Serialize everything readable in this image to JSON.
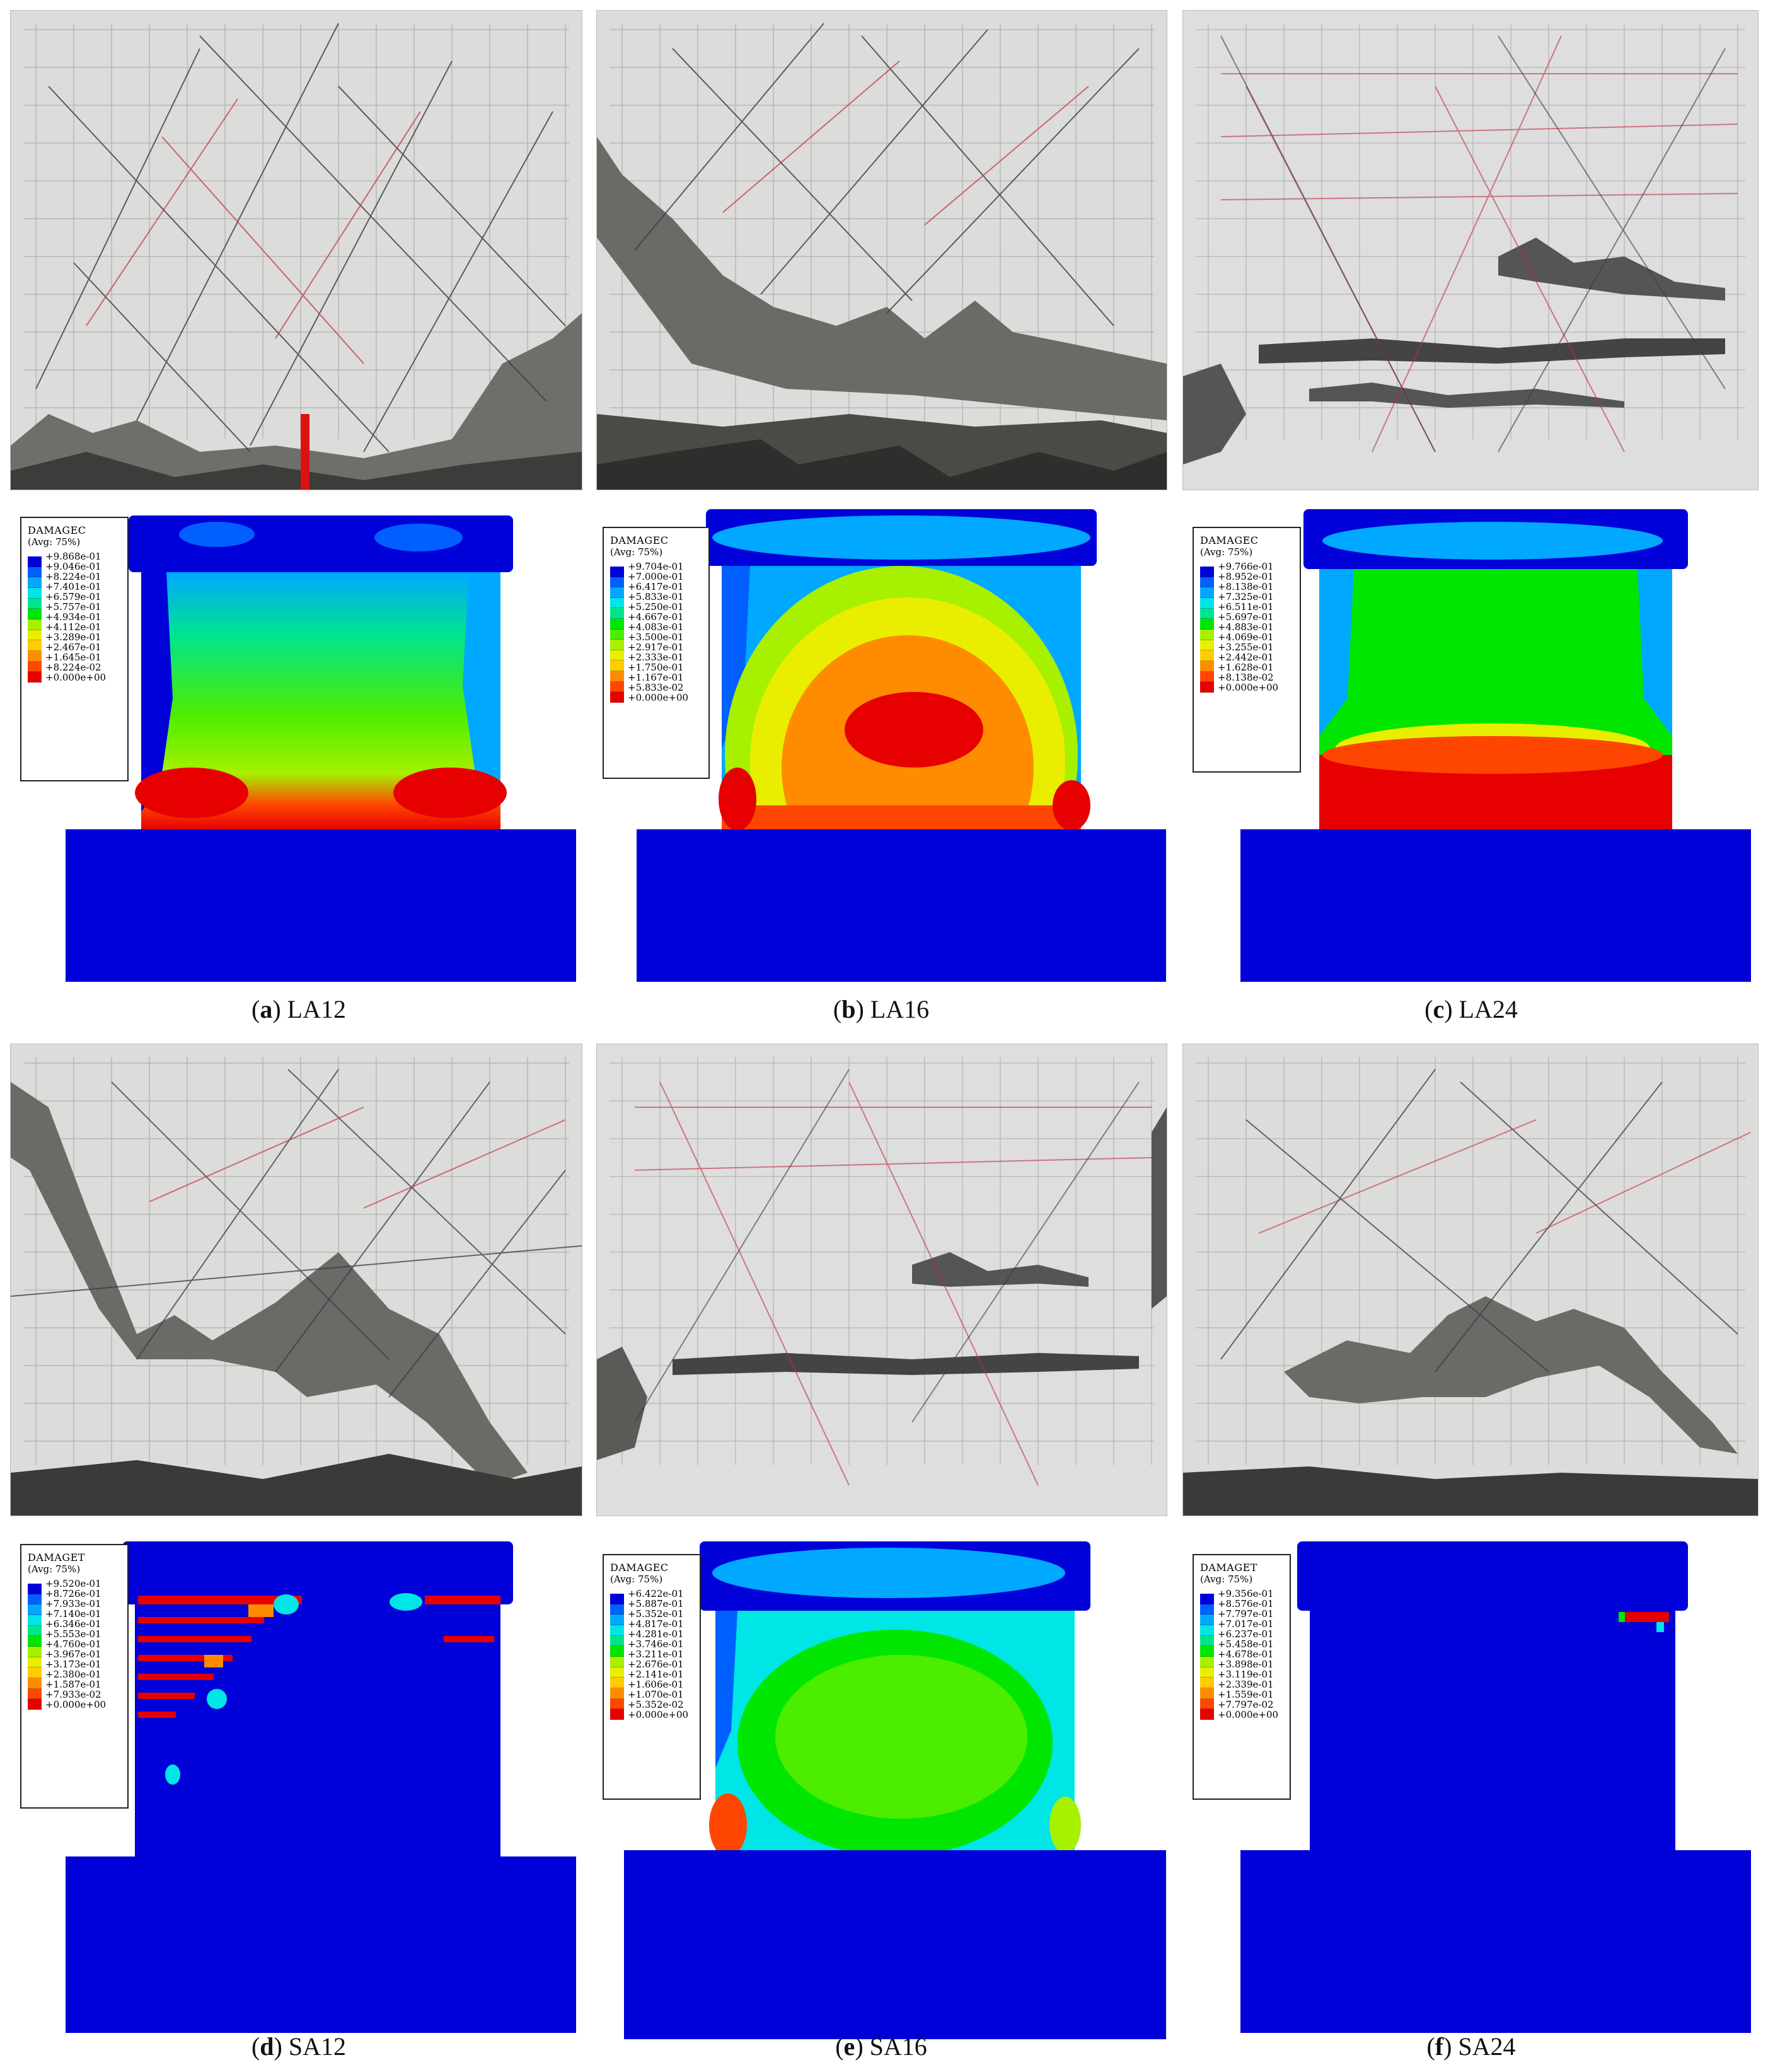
{
  "colors": {
    "contour": [
      "#0000d9",
      "#0060ff",
      "#00a8ff",
      "#00e5e5",
      "#00e58c",
      "#00e600",
      "#4ded00",
      "#a7f000",
      "#e9ee00",
      "#ffcc00",
      "#ff8c00",
      "#ff4600",
      "#e60000"
    ]
  },
  "panels": [
    {
      "id": "a",
      "letter": "a",
      "name": "LA12",
      "legend": {
        "title": "DAMAGEC",
        "subtitle": "(Avg: 75%)",
        "values": [
          "+9.868e-01",
          "+9.046e-01",
          "+8.224e-01",
          "+7.401e-01",
          "+6.579e-01",
          "+5.757e-01",
          "+4.934e-01",
          "+4.112e-01",
          "+3.289e-01",
          "+2.467e-01",
          "+1.645e-01",
          "+8.224e-02",
          "+0.000e+00"
        ]
      }
    },
    {
      "id": "b",
      "letter": "b",
      "name": "LA16",
      "legend": {
        "title": "DAMAGEC",
        "subtitle": "(Avg: 75%)",
        "values": [
          "+9.704e-01",
          "+7.000e-01",
          "+6.417e-01",
          "+5.833e-01",
          "+5.250e-01",
          "+4.667e-01",
          "+4.083e-01",
          "+3.500e-01",
          "+2.917e-01",
          "+2.333e-01",
          "+1.750e-01",
          "+1.167e-01",
          "+5.833e-02",
          "+0.000e+00"
        ]
      }
    },
    {
      "id": "c",
      "letter": "c",
      "name": "LA24",
      "legend": {
        "title": "DAMAGEC",
        "subtitle": "(Avg: 75%)",
        "values": [
          "+9.766e-01",
          "+8.952e-01",
          "+8.138e-01",
          "+7.325e-01",
          "+6.511e-01",
          "+5.697e-01",
          "+4.883e-01",
          "+4.069e-01",
          "+3.255e-01",
          "+2.442e-01",
          "+1.628e-01",
          "+8.138e-02",
          "+0.000e+00"
        ]
      }
    },
    {
      "id": "d",
      "letter": "d",
      "name": "SA12",
      "legend": {
        "title": "DAMAGET",
        "subtitle": "(Avg: 75%)",
        "values": [
          "+9.520e-01",
          "+8.726e-01",
          "+7.933e-01",
          "+7.140e-01",
          "+6.346e-01",
          "+5.553e-01",
          "+4.760e-01",
          "+3.967e-01",
          "+3.173e-01",
          "+2.380e-01",
          "+1.587e-01",
          "+7.933e-02",
          "+0.000e+00"
        ]
      }
    },
    {
      "id": "e",
      "letter": "e",
      "name": "SA16",
      "legend": {
        "title": "DAMAGEC",
        "subtitle": "(Avg: 75%)",
        "values": [
          "+6.422e-01",
          "+5.887e-01",
          "+5.352e-01",
          "+4.817e-01",
          "+4.281e-01",
          "+3.746e-01",
          "+3.211e-01",
          "+2.676e-01",
          "+2.141e-01",
          "+1.606e-01",
          "+1.070e-01",
          "+5.352e-02",
          "+0.000e+00"
        ]
      }
    },
    {
      "id": "f",
      "letter": "f",
      "name": "SA24",
      "legend": {
        "title": "DAMAGET",
        "subtitle": "(Avg: 75%)",
        "values": [
          "+9.356e-01",
          "+8.576e-01",
          "+7.797e-01",
          "+7.017e-01",
          "+6.237e-01",
          "+5.458e-01",
          "+4.678e-01",
          "+3.898e-01",
          "+3.119e-01",
          "+2.339e-01",
          "+1.559e-01",
          "+7.797e-02",
          "+0.000e+00"
        ]
      }
    }
  ]
}
